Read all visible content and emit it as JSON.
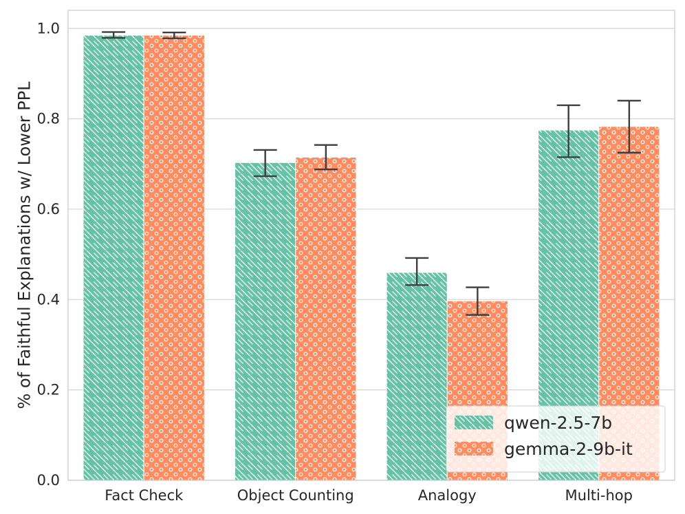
{
  "chart_data": {
    "type": "bar",
    "title": "",
    "xlabel": "",
    "ylabel": "% of Faithful Explanations w/ Lower PPL",
    "ylim": [
      0.0,
      1.04
    ],
    "yticks": [
      "0.0",
      "0.2",
      "0.4",
      "0.6",
      "0.8",
      "1.0"
    ],
    "grid": "horizontal",
    "legend_position": "bottom-right",
    "categories": [
      "Fact Check",
      "Object Counting",
      "Analogy",
      "Multi-hop"
    ],
    "series": [
      {
        "name": "qwen-2.5-7b",
        "color": "#66c2a5",
        "pattern": "diagonal-hatch",
        "values": [
          0.985,
          0.703,
          0.46,
          0.775
        ],
        "err_low": [
          0.979,
          0.673,
          0.432,
          0.715
        ],
        "err_high": [
          0.992,
          0.731,
          0.492,
          0.83
        ]
      },
      {
        "name": "gemma-2-9b-it",
        "color": "#fc8d62",
        "pattern": "circles",
        "values": [
          0.985,
          0.715,
          0.397,
          0.783
        ],
        "err_low": [
          0.978,
          0.688,
          0.366,
          0.725
        ],
        "err_high": [
          0.991,
          0.742,
          0.427,
          0.84
        ]
      }
    ]
  }
}
